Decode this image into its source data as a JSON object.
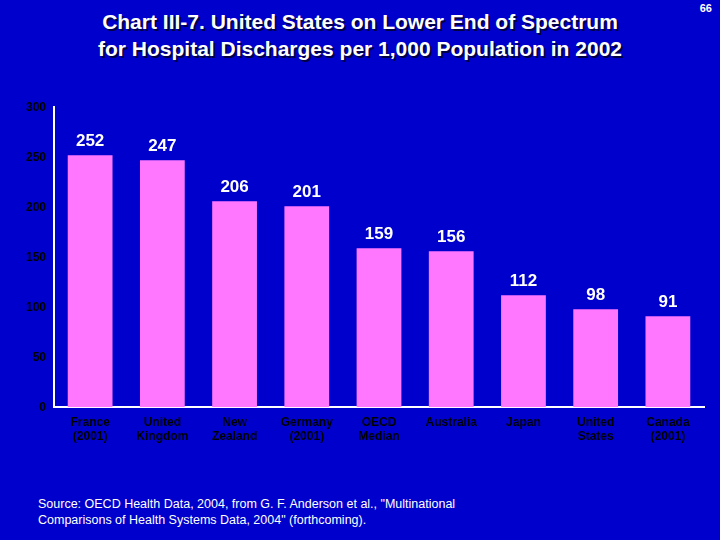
{
  "chart_data": {
    "type": "bar",
    "title": [
      "Chart III-7. United States on Lower End of Spectrum",
      "for Hospital Discharges per 1,000 Population in 2002"
    ],
    "page_number": "66",
    "source": "Source: OECD Health Data, 2004, from G. F. Anderson et al., \"Multinational Comparisons of Health Systems Data, 2004\" (forthcoming).",
    "categories": [
      "France (2001)",
      "United Kingdom",
      "New Zealand",
      "Germany (2001)",
      "OECD Median",
      "Australia",
      "Japan",
      "United States",
      "Canada (2001)"
    ],
    "values": [
      252,
      247,
      206,
      201,
      159,
      156,
      112,
      98,
      91
    ],
    "color": "#ff77ff",
    "ylim": [
      0,
      300
    ],
    "yticks": [
      0,
      50,
      100,
      150,
      200,
      250,
      300
    ],
    "grid": false,
    "data_labels": true
  }
}
